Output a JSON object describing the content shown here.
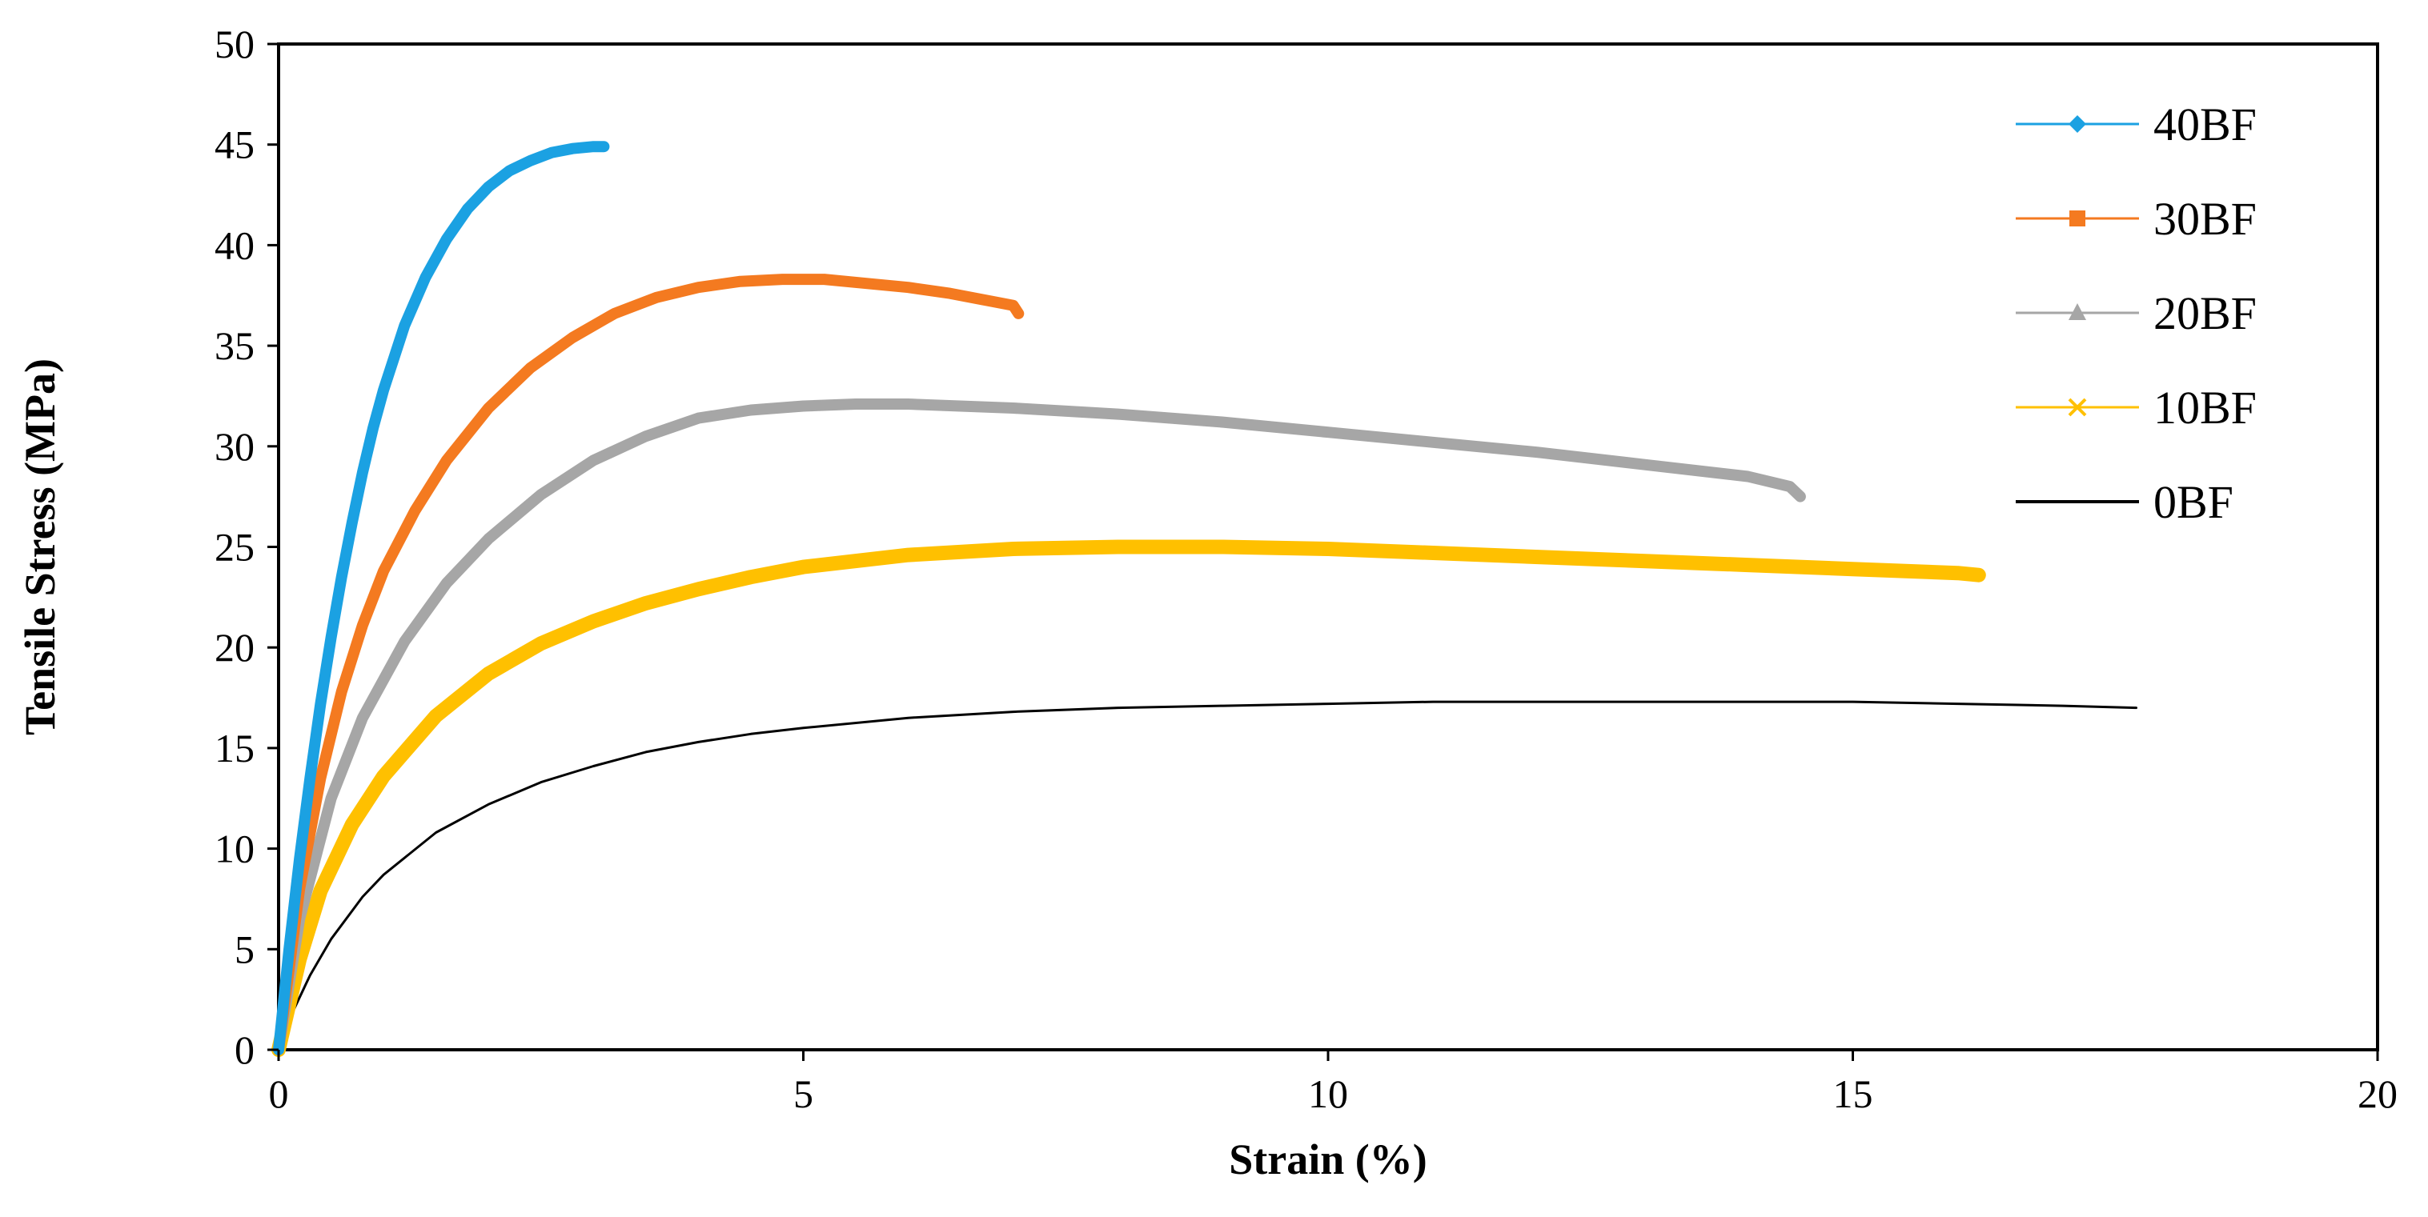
{
  "chart_data": {
    "type": "line",
    "title": "",
    "xlabel": "Strain (%)",
    "ylabel": "Tensile Stress (MPa)",
    "xlim": [
      0,
      20
    ],
    "ylim": [
      0,
      50
    ],
    "xticks": [
      0,
      5,
      10,
      15,
      20
    ],
    "yticks": [
      0,
      5,
      10,
      15,
      20,
      25,
      30,
      35,
      40,
      45,
      50
    ],
    "grid": false,
    "legend_position": "top-right",
    "series": [
      {
        "name": "40BF",
        "color": "#1ba1e2",
        "marker": "diamond",
        "x": [
          0,
          0.1,
          0.2,
          0.3,
          0.4,
          0.5,
          0.6,
          0.7,
          0.8,
          0.9,
          1.0,
          1.2,
          1.4,
          1.6,
          1.8,
          2.0,
          2.2,
          2.4,
          2.6,
          2.8,
          3.0,
          3.1
        ],
        "y": [
          0,
          5,
          9.5,
          13.5,
          17.2,
          20.5,
          23.5,
          26.2,
          28.7,
          30.9,
          32.8,
          36.0,
          38.4,
          40.3,
          41.8,
          42.9,
          43.7,
          44.2,
          44.6,
          44.8,
          44.9,
          44.9
        ]
      },
      {
        "name": "30BF",
        "color": "#f47a20",
        "marker": "square",
        "x": [
          0,
          0.2,
          0.4,
          0.6,
          0.8,
          1.0,
          1.3,
          1.6,
          2.0,
          2.4,
          2.8,
          3.2,
          3.6,
          4.0,
          4.4,
          4.8,
          5.2,
          5.6,
          6.0,
          6.4,
          6.8,
          7.0,
          7.05
        ],
        "y": [
          0,
          8,
          13.5,
          17.8,
          21.1,
          23.8,
          26.8,
          29.3,
          31.9,
          33.9,
          35.4,
          36.6,
          37.4,
          37.9,
          38.2,
          38.3,
          38.3,
          38.1,
          37.9,
          37.6,
          37.2,
          37.0,
          36.6
        ]
      },
      {
        "name": "20BF",
        "color": "#a6a6a6",
        "marker": "triangle",
        "x": [
          0,
          0.2,
          0.5,
          0.8,
          1.2,
          1.6,
          2.0,
          2.5,
          3.0,
          3.5,
          4.0,
          4.5,
          5.0,
          5.5,
          6.0,
          7.0,
          8.0,
          9.0,
          10.0,
          11.0,
          12.0,
          13.0,
          14.0,
          14.4,
          14.5
        ],
        "y": [
          0,
          6.5,
          12.5,
          16.5,
          20.3,
          23.2,
          25.4,
          27.6,
          29.3,
          30.5,
          31.4,
          31.8,
          32.0,
          32.1,
          32.1,
          31.9,
          31.6,
          31.2,
          30.7,
          30.2,
          29.7,
          29.1,
          28.5,
          28.0,
          27.5
        ]
      },
      {
        "name": "10BF",
        "color": "#ffc000",
        "marker": "x",
        "x": [
          0,
          0.2,
          0.4,
          0.7,
          1.0,
          1.5,
          2.0,
          2.5,
          3.0,
          3.5,
          4.0,
          4.5,
          5.0,
          6.0,
          7.0,
          8.0,
          9.0,
          10.0,
          11.0,
          12.0,
          13.0,
          14.0,
          15.0,
          16.0,
          16.2
        ],
        "y": [
          0,
          4.5,
          7.9,
          11.2,
          13.6,
          16.6,
          18.7,
          20.2,
          21.3,
          22.2,
          22.9,
          23.5,
          24.0,
          24.6,
          24.9,
          25.0,
          25.0,
          24.9,
          24.7,
          24.5,
          24.3,
          24.1,
          23.9,
          23.7,
          23.6
        ]
      },
      {
        "name": "0BF",
        "color": "#000000",
        "marker": "none",
        "x": [
          0,
          0.1,
          0.3,
          0.5,
          0.8,
          1.0,
          1.5,
          2.0,
          2.5,
          3.0,
          3.5,
          4.0,
          4.5,
          5.0,
          6.0,
          7.0,
          8.0,
          9.0,
          10.0,
          11.0,
          12.0,
          13.0,
          14.0,
          15.0,
          16.0,
          17.0,
          17.7
        ],
        "y": [
          0,
          1.5,
          3.7,
          5.5,
          7.6,
          8.7,
          10.8,
          12.2,
          13.3,
          14.1,
          14.8,
          15.3,
          15.7,
          16.0,
          16.5,
          16.8,
          17.0,
          17.1,
          17.2,
          17.3,
          17.3,
          17.3,
          17.3,
          17.3,
          17.2,
          17.1,
          17.0
        ]
      }
    ]
  }
}
